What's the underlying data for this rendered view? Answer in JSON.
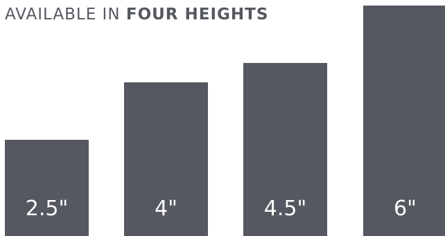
{
  "heading": {
    "light_text": "AVAILABLE IN",
    "bold_text": "FOUR HEIGHTS"
  },
  "colors": {
    "bar": "#555860",
    "heading": "#55585f",
    "label": "#ffffff"
  },
  "heights": [
    {
      "label": "2.5\"",
      "value": 2.5
    },
    {
      "label": "4\"",
      "value": 4
    },
    {
      "label": "4.5\"",
      "value": 4.5
    },
    {
      "label": "6\"",
      "value": 6
    }
  ]
}
